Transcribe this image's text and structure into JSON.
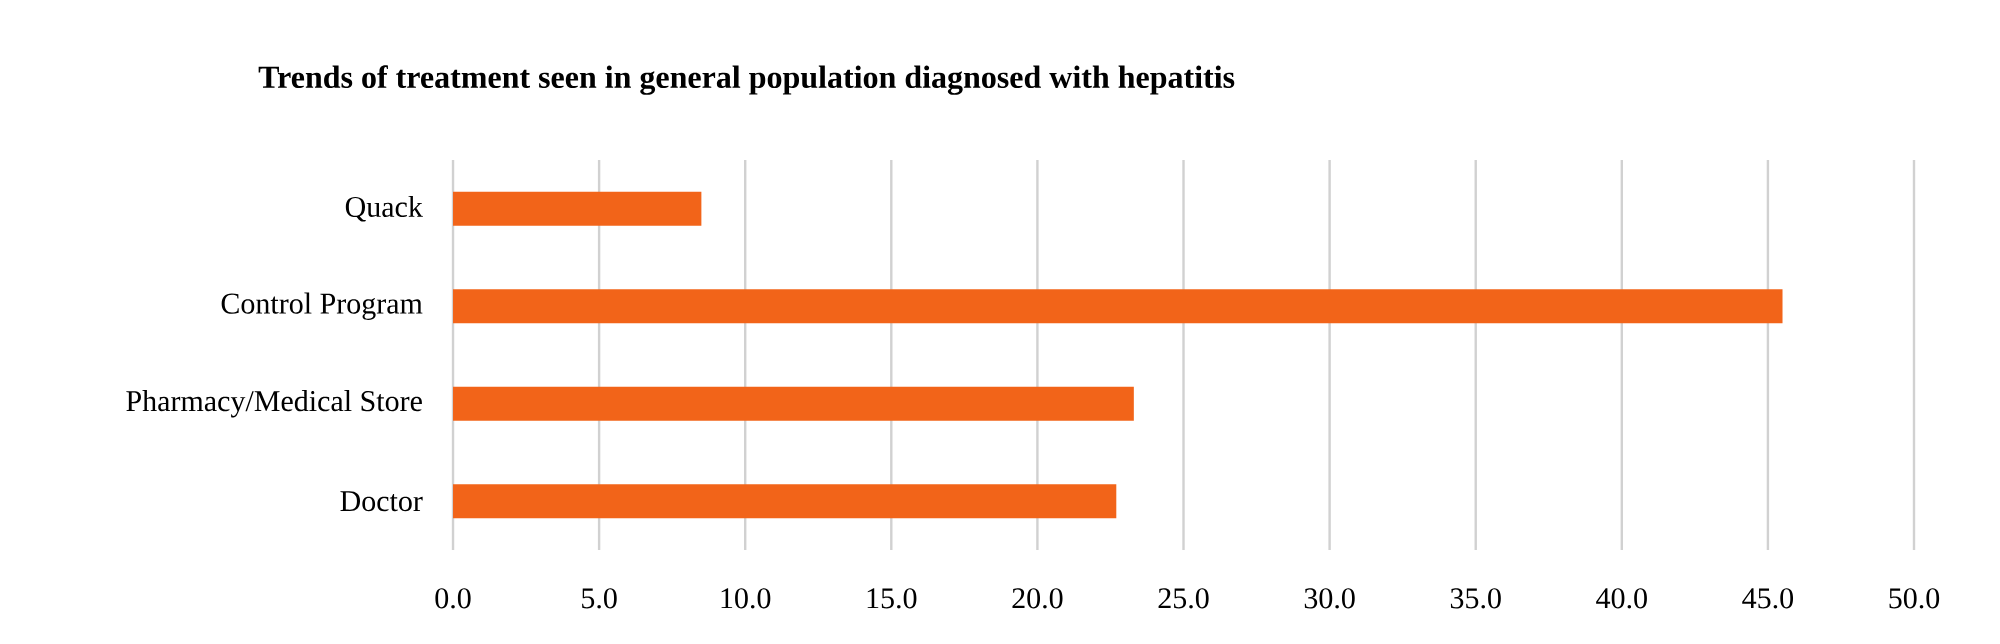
{
  "chart_data": {
    "type": "bar",
    "orientation": "horizontal",
    "title": "Trends of treatment seen in general population diagnosed with hepatitis",
    "categories": [
      "Quack",
      "Control Program",
      "Pharmacy/Medical Store",
      "Doctor"
    ],
    "values": [
      8.5,
      45.5,
      23.3,
      22.7
    ],
    "color": "#f26419",
    "xlim": [
      0,
      50
    ],
    "xticks": [
      {
        "value": 0,
        "label": "0.0"
      },
      {
        "value": 5,
        "label": "5.0"
      },
      {
        "value": 10,
        "label": "10.0"
      },
      {
        "value": 15,
        "label": "15.0"
      },
      {
        "value": 20,
        "label": "20.0"
      },
      {
        "value": 25,
        "label": "25.0"
      },
      {
        "value": 30,
        "label": "30.0"
      },
      {
        "value": 35,
        "label": "35.0"
      },
      {
        "value": 40,
        "label": "40.0"
      },
      {
        "value": 45,
        "label": "45.0"
      },
      {
        "value": 50,
        "label": "50.0"
      }
    ],
    "grid": "x"
  }
}
